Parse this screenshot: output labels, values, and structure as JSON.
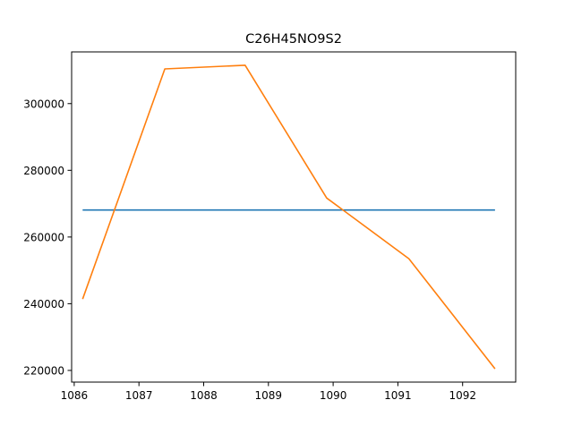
{
  "chart_data": {
    "type": "line",
    "title": "C26H45NO9S2",
    "xlabel": "",
    "ylabel": "",
    "xlim": [
      1085.96,
      1092.82
    ],
    "ylim": [
      216500,
      315500
    ],
    "grid": false,
    "x_ticks": [
      1086,
      1087,
      1088,
      1089,
      1090,
      1091,
      1092
    ],
    "y_ticks": [
      220000,
      240000,
      260000,
      280000,
      300000
    ],
    "series": [
      {
        "color": "#1f77b4",
        "x": [
          1086.13,
          1092.5
        ],
        "y": [
          268100,
          268100
        ]
      },
      {
        "color": "#ff7f0e",
        "x": [
          1086.13,
          1087.4,
          1088.64,
          1089.9,
          1091.17,
          1092.5
        ],
        "y": [
          241400,
          310400,
          311500,
          271700,
          253500,
          220500
        ]
      }
    ]
  }
}
